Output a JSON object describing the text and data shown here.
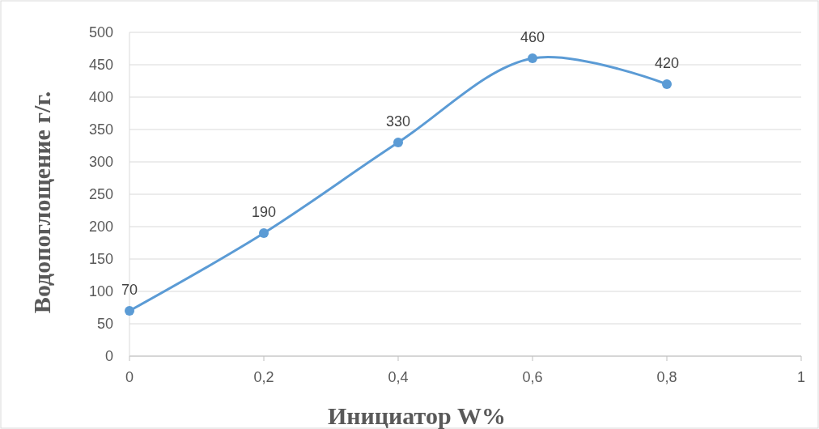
{
  "chart_data": {
    "type": "line",
    "xlabel": "Инициатор W%",
    "ylabel": "Водопоглощение г/г.",
    "x": [
      0,
      0.2,
      0.4,
      0.6,
      0.8
    ],
    "series": [
      {
        "color": "#5b9bd5",
        "values": [
          70,
          190,
          330,
          460,
          420
        ]
      }
    ],
    "xlim": [
      0,
      1
    ],
    "xticks": [
      0,
      {
        "value": 0.2,
        "label": "0,2"
      },
      {
        "value": 0.4,
        "label": "0,4"
      },
      {
        "value": 0.6,
        "label": "0,6"
      },
      {
        "value": 0.8,
        "label": "0,8"
      },
      1
    ],
    "ylim": [
      0,
      500
    ],
    "yticks": [
      0,
      50,
      100,
      150,
      200,
      250,
      300,
      350,
      400,
      450,
      500
    ],
    "grid": "y",
    "marker": "circle",
    "line_style": "solid",
    "data_labels": true
  }
}
